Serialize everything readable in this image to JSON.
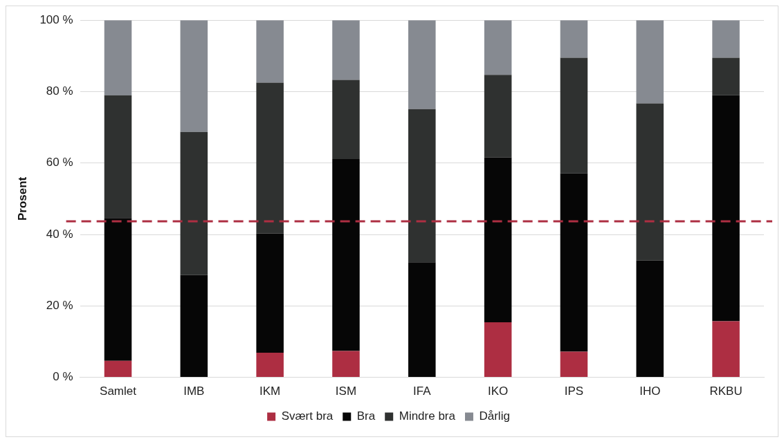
{
  "chart_data": {
    "type": "bar",
    "stacked": true,
    "categories": [
      "Samlet",
      "IMB",
      "IKM",
      "ISM",
      "IFA",
      "IKO",
      "IPS",
      "IHO",
      "RKBU"
    ],
    "series": [
      {
        "name": "Svært bra",
        "color": "#ad2e42",
        "values": [
          4.6,
          0,
          6.9,
          7.4,
          0,
          15.4,
          7.2,
          0,
          15.7
        ]
      },
      {
        "name": "Bra",
        "color": "#060606",
        "values": [
          40.0,
          28.7,
          33.4,
          53.7,
          32.2,
          46.2,
          49.9,
          32.7,
          63.3
        ]
      },
      {
        "name": "Mindre bra",
        "color": "#2f3130",
        "values": [
          34.4,
          40.0,
          42.2,
          22.2,
          42.9,
          23.1,
          32.4,
          44.0,
          10.5
        ]
      },
      {
        "name": "Dårlig",
        "color": "#868a91",
        "values": [
          21.0,
          31.3,
          17.5,
          16.7,
          24.9,
          15.3,
          10.5,
          23.3,
          10.5
        ]
      }
    ],
    "ylabel": "Prosent",
    "ylim": [
      0,
      100
    ],
    "yticks": [
      {
        "value": 0,
        "label": "0 %"
      },
      {
        "value": 20,
        "label": "20 %"
      },
      {
        "value": 40,
        "label": "40 %"
      },
      {
        "value": 60,
        "label": "60 %"
      },
      {
        "value": 80,
        "label": "80 %"
      },
      {
        "value": 100,
        "label": "100 %"
      }
    ],
    "grid": "y",
    "legend": "bottom",
    "ref_lines": [
      {
        "axis": "y",
        "value": 43.7,
        "color": "#ad2e42",
        "line_style": "dashed"
      }
    ]
  }
}
